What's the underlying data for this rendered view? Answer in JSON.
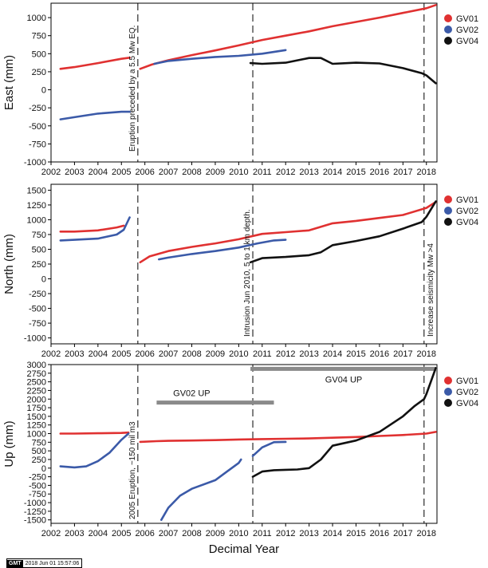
{
  "chart_data": [
    {
      "type": "scatter",
      "ylabel": "East (mm)",
      "xlim": [
        2002,
        2018.45
      ],
      "ylim": [
        -1000,
        1200
      ],
      "yticks": [
        -1000,
        -750,
        -500,
        -250,
        0,
        250,
        500,
        750,
        1000
      ],
      "xticks": [
        2002,
        2003,
        2004,
        2005,
        2006,
        2007,
        2008,
        2009,
        2010,
        2011,
        2012,
        2013,
        2014,
        2015,
        2016,
        2017,
        2018
      ],
      "legend": "right",
      "series": [
        {
          "name": "GV01",
          "color": "#e03131",
          "segments": [
            [
              [
                2002.4,
                290
              ],
              [
                2003.0,
                315
              ],
              [
                2004.0,
                370
              ],
              [
                2005.0,
                430
              ],
              [
                2005.35,
                445
              ]
            ],
            [
              [
                2005.8,
                290
              ],
              [
                2006.3,
                350
              ],
              [
                2007.0,
                410
              ],
              [
                2008.0,
                480
              ],
              [
                2009.0,
                545
              ],
              [
                2010.0,
                615
              ],
              [
                2011.0,
                690
              ],
              [
                2012.0,
                750
              ],
              [
                2013.0,
                810
              ],
              [
                2014.0,
                880
              ],
              [
                2015.0,
                940
              ],
              [
                2016.0,
                1000
              ],
              [
                2017.0,
                1065
              ],
              [
                2018.0,
                1130
              ],
              [
                2018.4,
                1175
              ]
            ]
          ]
        },
        {
          "name": "GV02",
          "color": "#3b5aa8",
          "segments": [
            [
              [
                2002.4,
                -410
              ],
              [
                2003.0,
                -380
              ],
              [
                2004.0,
                -330
              ],
              [
                2005.0,
                -305
              ],
              [
                2005.35,
                -305
              ]
            ],
            [
              [
                2006.4,
                360
              ],
              [
                2007.0,
                400
              ],
              [
                2008.0,
                430
              ],
              [
                2009.0,
                455
              ],
              [
                2010.0,
                470
              ],
              [
                2011.0,
                500
              ],
              [
                2012.0,
                550
              ]
            ]
          ]
        },
        {
          "name": "GV04",
          "color": "#111111",
          "segments": [
            [
              [
                2010.5,
                370
              ],
              [
                2011.0,
                360
              ],
              [
                2012.0,
                375
              ],
              [
                2013.0,
                440
              ],
              [
                2013.5,
                440
              ],
              [
                2014.0,
                360
              ],
              [
                2015.0,
                375
              ],
              [
                2016.0,
                365
              ],
              [
                2017.0,
                300
              ],
              [
                2017.8,
                230
              ],
              [
                2018.0,
                200
              ],
              [
                2018.4,
                90
              ]
            ]
          ]
        }
      ],
      "event_lines": [
        2005.7,
        2010.6,
        2017.9
      ],
      "annotation": "Eruption preceded by a 5.5 Mw EQ."
    },
    {
      "type": "scatter",
      "ylabel": "North (mm)",
      "xlim": [
        2002,
        2018.45
      ],
      "ylim": [
        -1100,
        1600
      ],
      "yticks": [
        -1000,
        -750,
        -500,
        -250,
        0,
        250,
        500,
        750,
        1000,
        1250,
        1500
      ],
      "xticks": [
        2002,
        2003,
        2004,
        2005,
        2006,
        2007,
        2008,
        2009,
        2010,
        2011,
        2012,
        2013,
        2014,
        2015,
        2016,
        2017,
        2018
      ],
      "legend": "right",
      "series": [
        {
          "name": "GV01",
          "color": "#e03131",
          "segments": [
            [
              [
                2002.4,
                800
              ],
              [
                2003.0,
                800
              ],
              [
                2004.0,
                820
              ],
              [
                2004.8,
                870
              ],
              [
                2005.1,
                900
              ]
            ],
            [
              [
                2005.8,
                280
              ],
              [
                2006.2,
                380
              ],
              [
                2007.0,
                470
              ],
              [
                2008.0,
                540
              ],
              [
                2009.0,
                600
              ],
              [
                2010.0,
                670
              ],
              [
                2011.0,
                760
              ],
              [
                2012.0,
                790
              ],
              [
                2013.0,
                820
              ],
              [
                2014.0,
                940
              ],
              [
                2015.0,
                980
              ],
              [
                2016.0,
                1030
              ],
              [
                2017.0,
                1080
              ],
              [
                2018.0,
                1200
              ],
              [
                2018.4,
                1300
              ]
            ]
          ]
        },
        {
          "name": "GV02",
          "color": "#3b5aa8",
          "segments": [
            [
              [
                2002.4,
                650
              ],
              [
                2003.0,
                660
              ],
              [
                2004.0,
                680
              ],
              [
                2004.8,
                750
              ],
              [
                2005.1,
                830
              ],
              [
                2005.35,
                1040
              ]
            ],
            [
              [
                2006.6,
                330
              ],
              [
                2007.0,
                360
              ],
              [
                2008.0,
                420
              ],
              [
                2009.0,
                470
              ],
              [
                2010.0,
                530
              ],
              [
                2010.8,
                600
              ],
              [
                2011.5,
                650
              ],
              [
                2012.0,
                660
              ]
            ]
          ]
        },
        {
          "name": "GV04",
          "color": "#111111",
          "segments": [
            [
              [
                2010.5,
                280
              ],
              [
                2011.0,
                350
              ],
              [
                2012.0,
                370
              ],
              [
                2013.0,
                400
              ],
              [
                2013.5,
                450
              ],
              [
                2014.0,
                570
              ],
              [
                2015.0,
                640
              ],
              [
                2016.0,
                720
              ],
              [
                2017.0,
                850
              ],
              [
                2017.8,
                960
              ],
              [
                2018.0,
                1050
              ],
              [
                2018.4,
                1310
              ]
            ]
          ]
        }
      ],
      "event_lines": [
        2005.7,
        2010.6,
        2017.9
      ],
      "annotation": "Intrusion Jun 2010, 5 to 1 km depth.",
      "annotation2": "Increase seismicity Mw >4"
    },
    {
      "type": "scatter",
      "ylabel": "Up (mm)",
      "xlabel": "Decimal Year",
      "xlim": [
        2002,
        2018.45
      ],
      "ylim": [
        -1600,
        3000
      ],
      "yticks": [
        -1500,
        -1250,
        -1000,
        -750,
        -500,
        -250,
        0,
        250,
        500,
        750,
        1000,
        1250,
        1500,
        1750,
        2000,
        2250,
        2500,
        2750,
        3000
      ],
      "xticks": [
        2002,
        2003,
        2004,
        2005,
        2006,
        2007,
        2008,
        2009,
        2010,
        2011,
        2012,
        2013,
        2014,
        2015,
        2016,
        2017,
        2018
      ],
      "legend": "right",
      "series": [
        {
          "name": "GV01",
          "color": "#e03131",
          "segments": [
            [
              [
                2002.4,
                1000
              ],
              [
                2003.0,
                1000
              ],
              [
                2004.0,
                1010
              ],
              [
                2005.0,
                1020
              ],
              [
                2005.3,
                1030
              ]
            ],
            [
              [
                2005.8,
                760
              ],
              [
                2006.5,
                780
              ],
              [
                2007.0,
                790
              ],
              [
                2008.0,
                800
              ],
              [
                2009.0,
                810
              ],
              [
                2010.0,
                830
              ],
              [
                2011.0,
                840
              ],
              [
                2012.0,
                850
              ],
              [
                2013.0,
                860
              ],
              [
                2014.0,
                880
              ],
              [
                2015.0,
                900
              ],
              [
                2016.0,
                930
              ],
              [
                2017.0,
                960
              ],
              [
                2018.0,
                1000
              ],
              [
                2018.4,
                1050
              ]
            ]
          ]
        },
        {
          "name": "GV02",
          "color": "#3b5aa8",
          "segments": [
            [
              [
                2002.4,
                50
              ],
              [
                2003.0,
                20
              ],
              [
                2003.5,
                50
              ],
              [
                2004.0,
                200
              ],
              [
                2004.5,
                450
              ],
              [
                2005.0,
                820
              ],
              [
                2005.3,
                1000
              ]
            ],
            [
              [
                2006.7,
                -1500
              ],
              [
                2007.0,
                -1150
              ],
              [
                2007.5,
                -800
              ],
              [
                2008.0,
                -600
              ],
              [
                2009.0,
                -350
              ],
              [
                2009.5,
                -100
              ],
              [
                2010.0,
                150
              ],
              [
                2010.1,
                250
              ]
            ],
            [
              [
                2010.6,
                350
              ],
              [
                2011.0,
                600
              ],
              [
                2011.5,
                750
              ],
              [
                2012.0,
                760
              ]
            ]
          ]
        },
        {
          "name": "GV04",
          "color": "#111111",
          "segments": [
            [
              [
                2010.6,
                -250
              ],
              [
                2011.0,
                -100
              ],
              [
                2011.5,
                -60
              ],
              [
                2012.0,
                -50
              ],
              [
                2012.5,
                -40
              ],
              [
                2013.0,
                0
              ],
              [
                2013.5,
                250
              ],
              [
                2014.0,
                650
              ],
              [
                2015.0,
                800
              ],
              [
                2016.0,
                1050
              ],
              [
                2017.0,
                1500
              ],
              [
                2017.5,
                1800
              ],
              [
                2017.9,
                2000
              ],
              [
                2018.0,
                2150
              ],
              [
                2018.4,
                2900
              ]
            ]
          ]
        }
      ],
      "event_lines": [
        2005.7,
        2010.6,
        2017.9
      ],
      "annotation": "2005 Eruption, ~150 mil m3",
      "bars": [
        {
          "label": "GV02 UP",
          "x0": 2006.5,
          "x1": 2011.5,
          "y": 1900
        },
        {
          "label": "GV04 UP",
          "x0": 2010.5,
          "x1": 2018.45,
          "y": 2875
        }
      ]
    }
  ],
  "stamp": {
    "logo": "GMT",
    "datetime": "2018 Jun 01 15:57:06"
  }
}
